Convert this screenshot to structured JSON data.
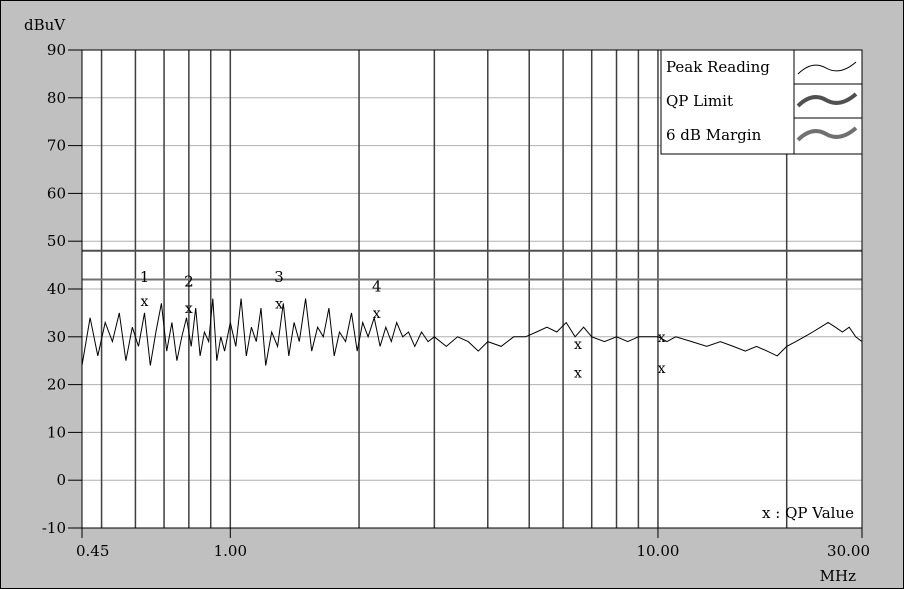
{
  "chart_data": {
    "type": "line",
    "title": "",
    "ylabel": "dBuV",
    "xlabel": "MHz",
    "x_scale": "log",
    "xlim": [
      0.45,
      30.0
    ],
    "ylim": [
      -10,
      90
    ],
    "x_ticks": [
      {
        "value": 0.45,
        "label": "0.45"
      },
      {
        "value": 1.0,
        "label": "1.00"
      },
      {
        "value": 10.0,
        "label": "10.00"
      },
      {
        "value": 30.0,
        "label": "30.00"
      }
    ],
    "y_ticks": [
      {
        "value": 90,
        "label": "90"
      },
      {
        "value": 80,
        "label": "80"
      },
      {
        "value": 70,
        "label": "70"
      },
      {
        "value": 60,
        "label": "60"
      },
      {
        "value": 50,
        "label": "50"
      },
      {
        "value": 40,
        "label": "40"
      },
      {
        "value": 30,
        "label": "30"
      },
      {
        "value": 20,
        "label": "20"
      },
      {
        "value": 10,
        "label": "10"
      },
      {
        "value": 0,
        "label": "0"
      },
      {
        "value": -10,
        "label": "-10"
      }
    ],
    "grid": true,
    "legend": {
      "placement": "top-right",
      "entries": [
        {
          "name": "Peak Reading",
          "color": "#000000"
        },
        {
          "name": "QP Limit",
          "color": "#505050"
        },
        {
          "name": "6 dB Margin",
          "color": "#707070"
        }
      ]
    },
    "series": [
      {
        "name": "Peak Reading",
        "x": [
          0.45,
          0.47,
          0.49,
          0.51,
          0.53,
          0.55,
          0.57,
          0.59,
          0.61,
          0.63,
          0.65,
          0.67,
          0.69,
          0.71,
          0.73,
          0.75,
          0.77,
          0.79,
          0.81,
          0.83,
          0.85,
          0.87,
          0.89,
          0.91,
          0.93,
          0.95,
          0.97,
          1.0,
          1.03,
          1.06,
          1.09,
          1.12,
          1.15,
          1.18,
          1.21,
          1.25,
          1.29,
          1.33,
          1.37,
          1.41,
          1.45,
          1.5,
          1.55,
          1.6,
          1.65,
          1.7,
          1.75,
          1.8,
          1.86,
          1.92,
          1.98,
          2.04,
          2.1,
          2.17,
          2.24,
          2.31,
          2.38,
          2.45,
          2.53,
          2.61,
          2.7,
          2.8,
          2.9,
          3.0,
          3.2,
          3.4,
          3.6,
          3.8,
          4.0,
          4.3,
          4.6,
          4.9,
          5.2,
          5.5,
          5.8,
          6.1,
          6.4,
          6.7,
          7.0,
          7.5,
          8.0,
          8.5,
          9.0,
          9.5,
          10.0,
          10.5,
          11.0,
          12.0,
          13.0,
          14.0,
          15.0,
          16.0,
          17.0,
          18.0,
          19.0,
          20.0,
          21.0,
          22.0,
          23.0,
          24.0,
          25.0,
          26.0,
          27.0,
          28.0,
          29.0,
          30.0
        ],
        "y": [
          24,
          34,
          26,
          33,
          29,
          35,
          25,
          32,
          28,
          35,
          24,
          31,
          37,
          27,
          33,
          25,
          30,
          34,
          28,
          36,
          26,
          31,
          29,
          38,
          25,
          30,
          27,
          33,
          28,
          38,
          26,
          32,
          29,
          36,
          24,
          31,
          28,
          37,
          26,
          33,
          29,
          38,
          27,
          32,
          30,
          36,
          26,
          31,
          29,
          35,
          27,
          33,
          30,
          34,
          28,
          32,
          29,
          33,
          30,
          31,
          28,
          31,
          29,
          30,
          28,
          30,
          29,
          27,
          29,
          28,
          30,
          30,
          31,
          32,
          31,
          33,
          30,
          32,
          30,
          29,
          30,
          29,
          30,
          30,
          30,
          29,
          30,
          29,
          28,
          29,
          28,
          27,
          28,
          27,
          26,
          28,
          29,
          30,
          31,
          32,
          33,
          32,
          31,
          32,
          30,
          29
        ]
      },
      {
        "name": "QP Limit",
        "x": [
          0.45,
          30.0
        ],
        "y": [
          48,
          48
        ]
      },
      {
        "name": "6 dB Margin",
        "x": [
          0.45,
          30.0
        ],
        "y": [
          42,
          42
        ]
      }
    ],
    "qp_values": {
      "legend_label": "x : QP Value",
      "x": [
        0.63,
        0.8,
        1.3,
        2.2,
        6.5,
        6.5,
        10.2,
        10.2
      ],
      "y": [
        37.5,
        36,
        37,
        35,
        28.5,
        22.5,
        30,
        23.5
      ]
    },
    "annotations": [
      {
        "label": "1",
        "x": 0.63,
        "y": 41.5
      },
      {
        "label": "2",
        "x": 0.8,
        "y": 40.5
      },
      {
        "label": "3",
        "x": 1.3,
        "y": 41.5
      },
      {
        "label": "4",
        "x": 2.2,
        "y": 39.5
      }
    ],
    "markers_x": [
      0.5,
      0.6,
      0.7,
      0.8,
      0.9,
      1.0,
      2.0,
      3.0,
      4.0,
      5.0,
      6.0,
      7.0,
      8.0,
      9.0,
      10.0,
      20.0
    ]
  },
  "colors": {
    "frame_background": "#c0c0c0",
    "plot_background": "#ffffff",
    "grid": "#b0b0b0",
    "marker_lines": "#404040",
    "limit": "#505050",
    "margin": "#707070",
    "trace": "#000000"
  }
}
